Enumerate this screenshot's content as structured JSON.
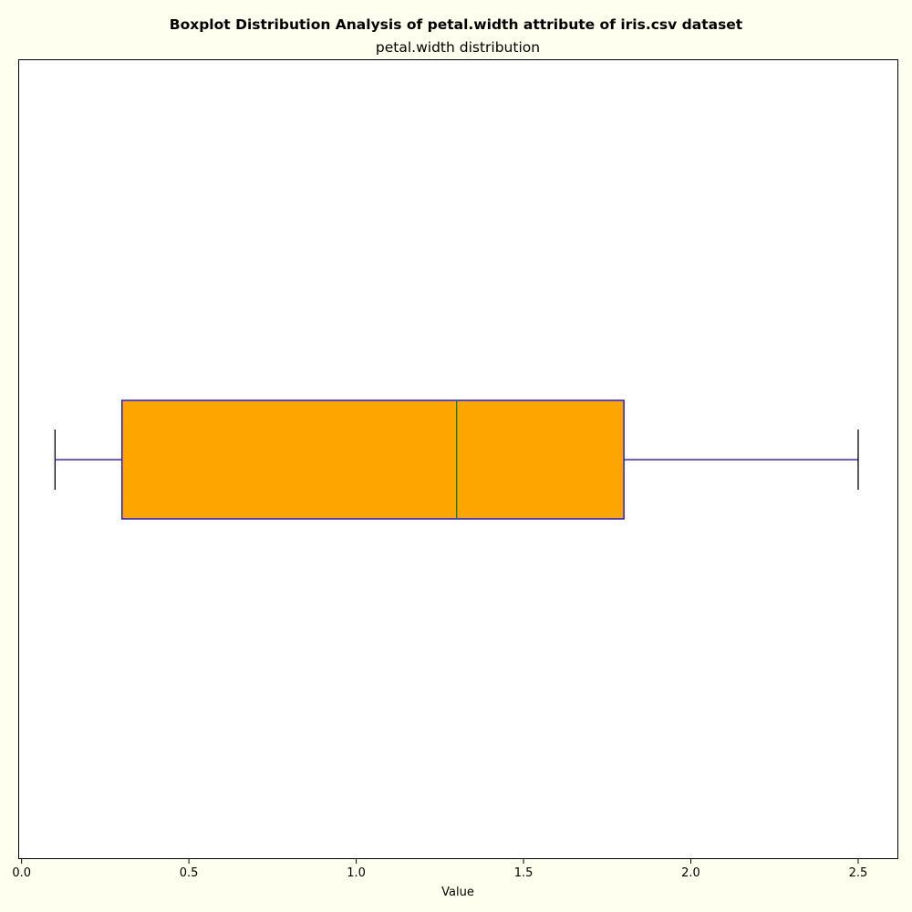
{
  "chart_data": {
    "type": "boxplot",
    "orientation": "horizontal",
    "figure_title": "Boxplot Distribution Analysis of petal.width attribute of iris.csv dataset",
    "title": "petal.width distribution",
    "xlabel": "Value",
    "ylabel": "",
    "xlim": [
      -0.01,
      2.62
    ],
    "x_ticks": [
      0.0,
      0.5,
      1.0,
      1.5,
      2.0,
      2.5
    ],
    "x_tick_labels": [
      "0.0",
      "0.5",
      "1.0",
      "1.5",
      "2.0",
      "2.5"
    ],
    "grid": false,
    "box": {
      "whisker_low": 0.1,
      "q1": 0.3,
      "median": 1.3,
      "q3": 1.8,
      "whisker_high": 2.5
    },
    "colors": {
      "figure_background": "#fffff0",
      "axes_background": "#ffffff",
      "box_fill": "#ffa500",
      "box_edge": "#0000ff",
      "median_line": "#008000",
      "whisker_line": "#0000ff",
      "cap_line": "#000000"
    }
  }
}
